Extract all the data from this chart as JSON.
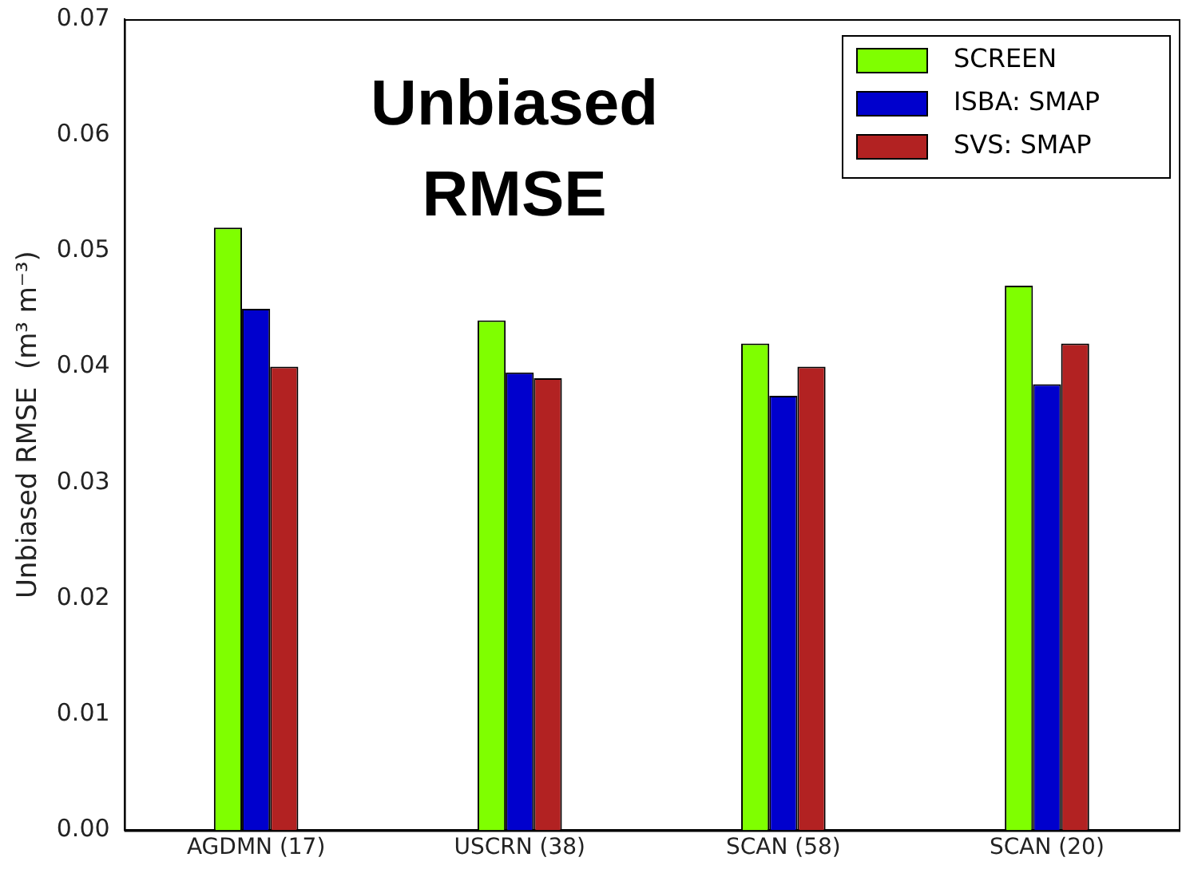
{
  "chart_data": {
    "type": "bar",
    "ylabel": "Unbiased RMSE  (m³ m⁻³)",
    "annotations": [
      "Unbiased RMSE"
    ],
    "categories": [
      "AGDMN (17)",
      "USCRN (38)",
      "SCAN (58)",
      "SCAN (20)"
    ],
    "series": [
      {
        "name": "SCREEN",
        "color": "#7fff00",
        "values": [
          0.052,
          0.044,
          0.042,
          0.047
        ]
      },
      {
        "name": "ISBA: SMAP",
        "color": "#0000cd",
        "values": [
          0.045,
          0.0395,
          0.0375,
          0.0385
        ]
      },
      {
        "name": "SVS: SMAP",
        "color": "#b22222",
        "values": [
          0.04,
          0.039,
          0.04,
          0.042
        ]
      }
    ],
    "ylim": [
      0,
      0.07
    ],
    "yticks": [
      {
        "value": 0,
        "label": "0.00"
      },
      0.01,
      0.02,
      0.03,
      0.04,
      0.05,
      0.06,
      0.07
    ],
    "grid": false,
    "legend": "top right"
  }
}
